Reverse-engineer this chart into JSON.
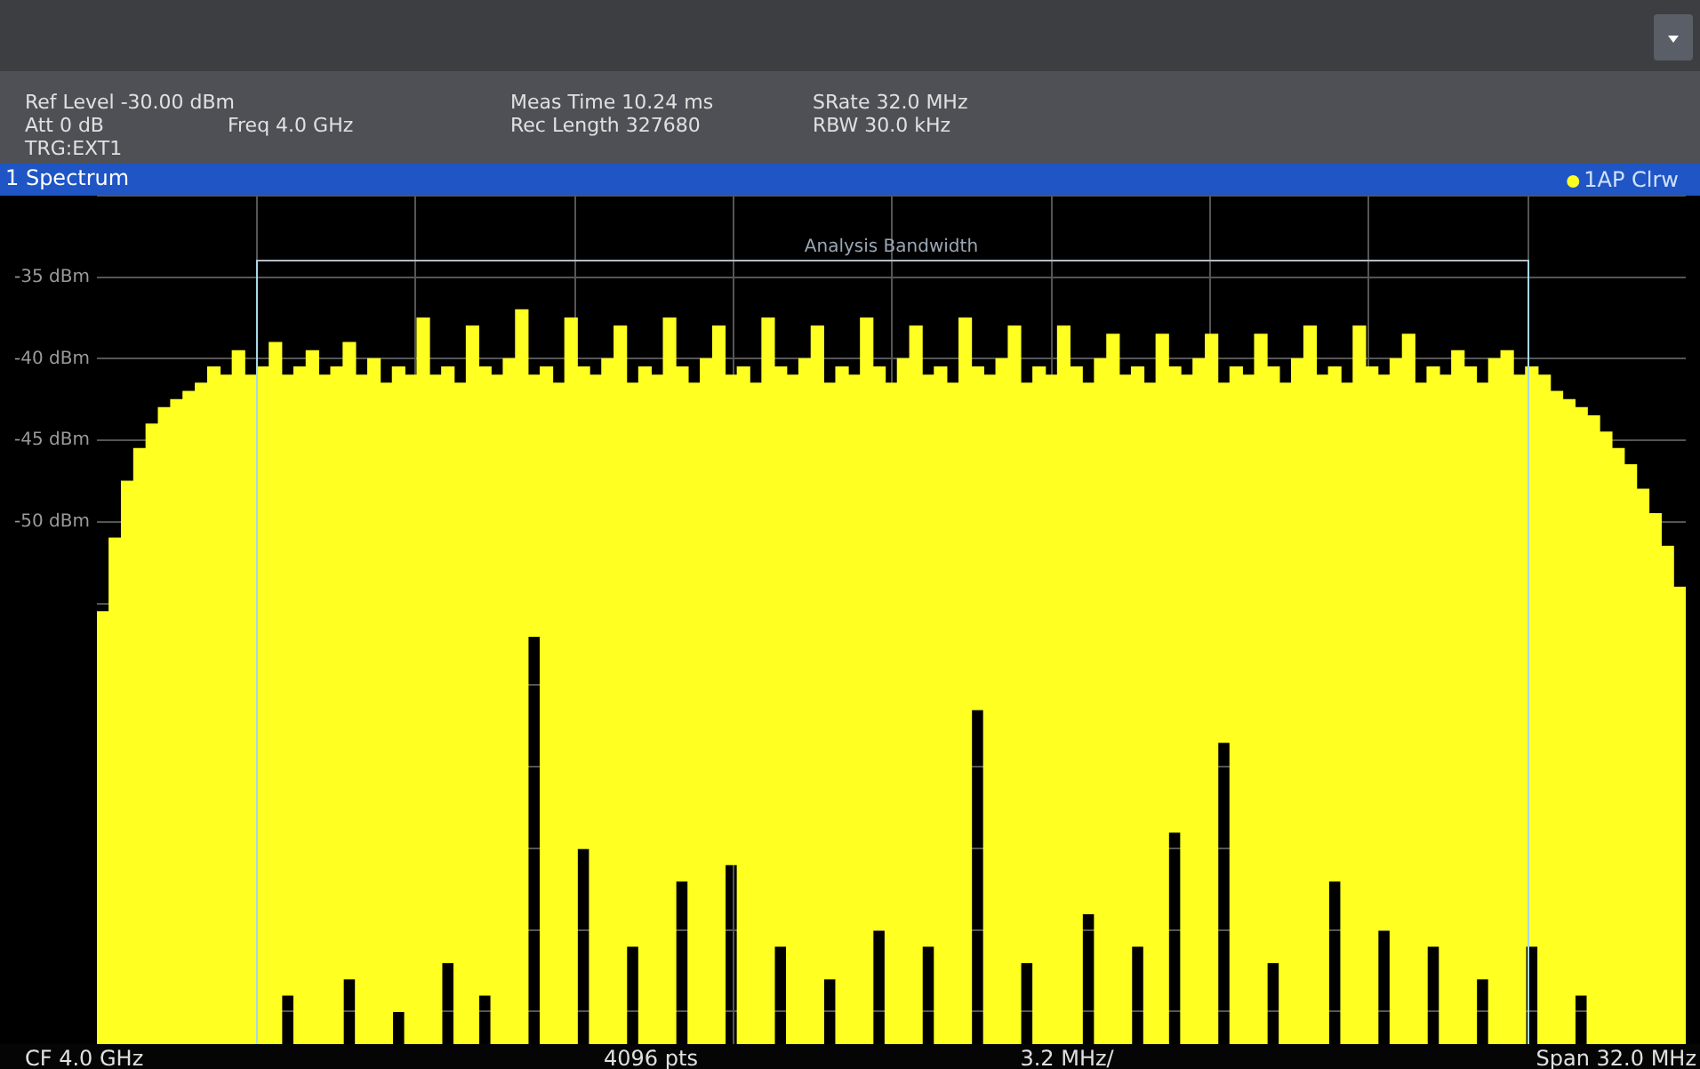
{
  "chart_data": {
    "type": "bar",
    "title": "1 Spectrum",
    "annotations": [
      "Ref Level -30.00 dBm",
      "Att 0 dB",
      "TRG:EXT1",
      "Freq 4.0 GHz",
      "Meas Time 10.24 ms",
      "Rec Length 327680",
      "SRate 32.0 MHz",
      "RBW 30.0 kHz",
      "CF 4.0 GHz",
      "4096 pts",
      "3.2 MHz/",
      "Span 32.0 MHz",
      "Analysis Bandwidth"
    ],
    "categories": [
      null,
      null,
      null,
      null,
      null,
      null,
      null,
      null,
      null,
      null,
      null,
      null,
      null,
      null,
      null,
      null,
      null,
      null,
      null,
      null,
      null,
      null,
      null,
      null,
      null,
      null,
      null,
      null,
      null,
      null,
      null,
      null,
      null,
      null,
      null,
      null,
      null,
      null,
      null,
      null,
      null,
      null,
      null,
      null,
      null,
      null,
      null,
      null,
      null,
      null,
      null,
      null,
      null,
      null,
      null,
      null,
      null,
      null,
      null,
      null,
      null,
      null,
      null,
      null,
      null,
      null,
      null,
      null,
      null,
      null,
      null,
      null,
      null,
      null,
      null,
      null,
      null,
      null,
      null,
      null,
      null,
      null,
      null,
      null,
      null,
      null,
      null,
      null,
      null,
      null,
      null,
      null,
      null,
      null,
      null,
      null,
      null,
      null,
      null,
      null,
      null,
      null,
      null,
      null,
      null,
      null,
      null,
      null,
      null,
      null,
      null,
      null,
      null,
      null,
      null,
      null,
      null,
      null,
      null,
      null,
      null,
      null,
      null,
      null,
      null,
      null,
      null,
      null,
      null
    ],
    "series": [
      {
        "name": "1AP Clrw",
        "color": "#ffff22",
        "values": [
          26.5,
          31,
          34.5,
          36.5,
          38,
          39,
          39.5,
          40,
          40.5,
          41.5,
          41,
          42.5,
          41,
          41.5,
          43,
          38,
          41.5,
          42.5,
          41,
          41.5,
          39,
          41,
          42,
          40.5,
          39.5,
          41,
          44.5,
          41,
          36.5,
          40.5,
          44,
          38.5,
          41,
          42,
          45,
          16,
          41.5,
          40.5,
          44.5,
          29.5,
          41,
          42,
          44,
          34.5,
          41.5,
          41,
          44.5,
          31.5,
          40.5,
          42,
          44,
          30,
          41.5,
          40.5,
          44.5,
          35.5,
          41,
          42,
          44,
          36.5,
          41.5,
          41,
          44.5,
          34.5,
          40.5,
          42,
          44,
          35,
          41.5,
          40.5,
          44.5,
          21,
          41,
          42,
          44,
          35.5,
          41.5,
          41,
          44,
          41.5,
          32.5,
          42,
          43.5,
          41,
          35.5,
          40.5,
          43.5,
          28.5,
          41,
          42,
          43.5,
          22,
          41.5,
          41,
          43.5,
          36.5,
          40.5,
          42,
          44,
          41,
          31.5,
          40.5,
          44,
          41.5,
          34,
          42,
          43.5,
          40.5,
          35.5,
          41,
          42.5,
          41.5,
          36.5,
          42,
          42.5,
          41,
          35.5,
          41,
          40,
          39.5,
          36,
          38.5,
          37.5,
          36.5,
          35.5,
          34,
          32.5,
          30.5,
          28
        ],
        "base": [
          -82,
          -82,
          -82,
          -82,
          -82,
          -82,
          -82,
          -82,
          -82,
          -82,
          -82,
          -82,
          -82,
          -82,
          -82,
          -79,
          -82,
          -82,
          -82,
          -82,
          -78,
          -82,
          -82,
          -82,
          -80,
          -82,
          -82,
          -82,
          -77,
          -82,
          -82,
          -79,
          -82,
          -82,
          -82,
          -57,
          -82,
          -82,
          -82,
          -70,
          -82,
          -82,
          -82,
          -76,
          -82,
          -82,
          -82,
          -72,
          -82,
          -82,
          -82,
          -71,
          -82,
          -82,
          -82,
          -76,
          -82,
          -82,
          -82,
          -78,
          -82,
          -82,
          -82,
          -75,
          -82,
          -82,
          -82,
          -76,
          -82,
          -82,
          -82,
          -61.5,
          -82,
          -82,
          -82,
          -77,
          -82,
          -82,
          -82,
          -82,
          -74,
          -82,
          -82,
          -82,
          -76,
          -82,
          -82,
          -69,
          -82,
          -82,
          -82,
          -63.5,
          -82,
          -82,
          -82,
          -77,
          -82,
          -82,
          -82,
          -82,
          -72,
          -82,
          -82,
          -82,
          -75,
          -82,
          -82,
          -82,
          -76,
          -82,
          -82,
          -82,
          -78,
          -82,
          -82,
          -82,
          -76,
          -82,
          -82,
          -82,
          -79,
          -82,
          -82,
          -82,
          -82,
          -82,
          -82,
          -82,
          -82
        ]
      }
    ],
    "ylim": [
      -82,
      -30
    ],
    "yticks": [
      {
        "value": -30,
        "label": null
      },
      {
        "value": -35,
        "label": "-35 dBm"
      },
      {
        "value": -40,
        "label": "-40 dBm"
      },
      {
        "value": -45,
        "label": "-45 dBm"
      },
      {
        "value": -50,
        "label": "-50 dBm"
      },
      {
        "value": -55,
        "label": null
      },
      {
        "value": -60,
        "label": null
      },
      {
        "value": -65,
        "label": null
      },
      {
        "value": -70,
        "label": null
      },
      {
        "value": -75,
        "label": null
      },
      {
        "value": -80,
        "label": null
      }
    ],
    "tick_labels": "y",
    "grid": true,
    "legend": "top right"
  }
}
